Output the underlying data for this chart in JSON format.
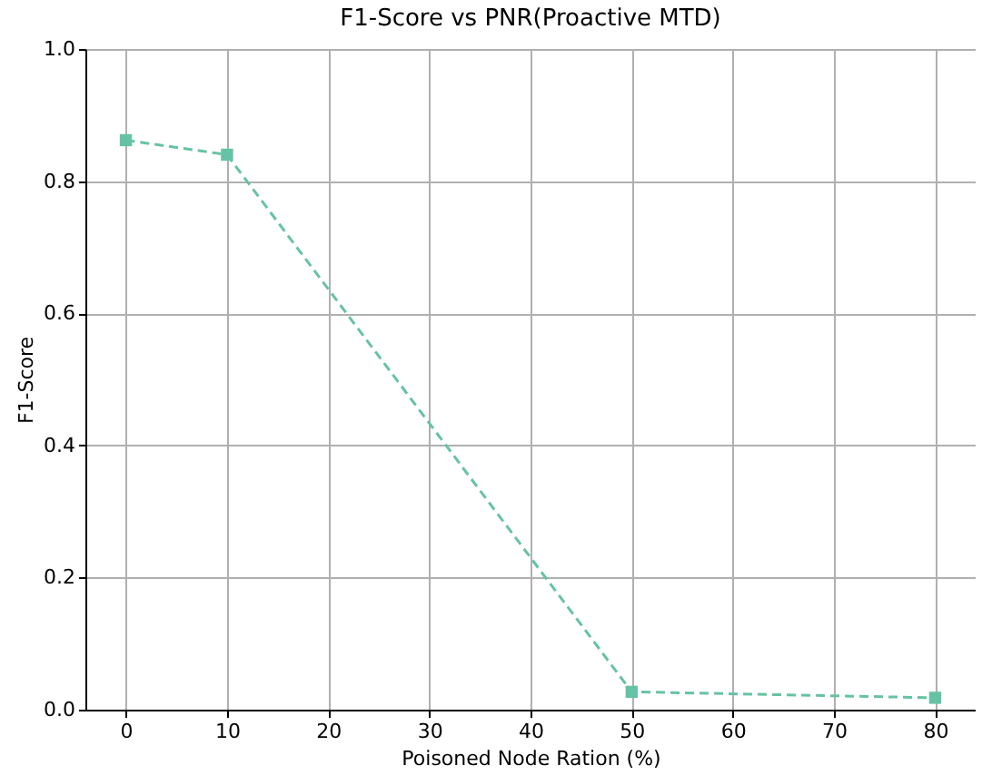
{
  "chart_data": {
    "type": "line",
    "title": "F1-Score vs PNR(Proactive MTD)",
    "xlabel": "Poisoned Node Ration (%)",
    "ylabel": "F1-Score",
    "x": [
      0,
      10,
      50,
      80
    ],
    "series": [
      {
        "color": "#66c2a5",
        "values": [
          0.862,
          0.84,
          0.027,
          0.018
        ]
      }
    ],
    "xlim": [
      -4,
      84
    ],
    "xticks": [
      0,
      10,
      20,
      30,
      40,
      50,
      60,
      70,
      80
    ],
    "ylim": [
      0,
      1
    ],
    "yticks": [
      {
        "value": 0,
        "label": "0.0"
      },
      {
        "value": 0.2,
        "label": "0.2"
      },
      {
        "value": 0.4,
        "label": "0.4"
      },
      {
        "value": 0.6,
        "label": "0.6"
      },
      {
        "value": 0.8,
        "label": "0.8"
      },
      {
        "value": 1,
        "label": "1.0"
      }
    ],
    "grid": true,
    "marker": "square",
    "line_style": "dashed"
  }
}
